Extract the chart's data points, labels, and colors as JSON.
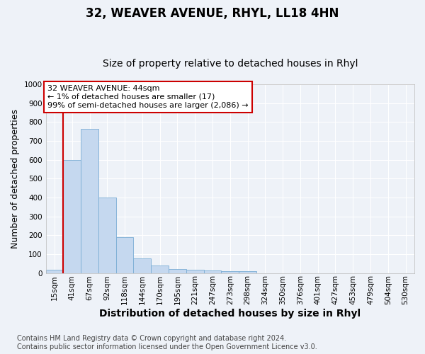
{
  "title": "32, WEAVER AVENUE, RHYL, LL18 4HN",
  "subtitle": "Size of property relative to detached houses in Rhyl",
  "xlabel": "Distribution of detached houses by size in Rhyl",
  "ylabel": "Number of detached properties",
  "categories": [
    "15sqm",
    "41sqm",
    "67sqm",
    "92sqm",
    "118sqm",
    "144sqm",
    "170sqm",
    "195sqm",
    "221sqm",
    "247sqm",
    "273sqm",
    "298sqm",
    "324sqm",
    "350sqm",
    "376sqm",
    "401sqm",
    "427sqm",
    "453sqm",
    "479sqm",
    "504sqm",
    "530sqm"
  ],
  "values": [
    17,
    600,
    765,
    400,
    190,
    78,
    40,
    20,
    18,
    13,
    10,
    8,
    0,
    0,
    0,
    0,
    0,
    0,
    0,
    0,
    0
  ],
  "bar_color": "#c5d8ef",
  "bar_edge_color": "#7aadd4",
  "vline_x_idx": 1,
  "vline_color": "#cc0000",
  "annotation_text": "32 WEAVER AVENUE: 44sqm\n← 1% of detached houses are smaller (17)\n99% of semi-detached houses are larger (2,086) →",
  "annotation_box_color": "#ffffff",
  "annotation_box_edge": "#cc0000",
  "ylim": [
    0,
    1000
  ],
  "yticks": [
    0,
    100,
    200,
    300,
    400,
    500,
    600,
    700,
    800,
    900,
    1000
  ],
  "footnote": "Contains HM Land Registry data © Crown copyright and database right 2024.\nContains public sector information licensed under the Open Government Licence v3.0.",
  "bg_color": "#eef2f8",
  "plot_bg_color": "#eef2f8",
  "grid_color": "#ffffff",
  "title_fontsize": 12,
  "subtitle_fontsize": 10,
  "xlabel_fontsize": 10,
  "ylabel_fontsize": 9,
  "footnote_fontsize": 7,
  "tick_fontsize": 7.5,
  "annotation_fontsize": 8
}
